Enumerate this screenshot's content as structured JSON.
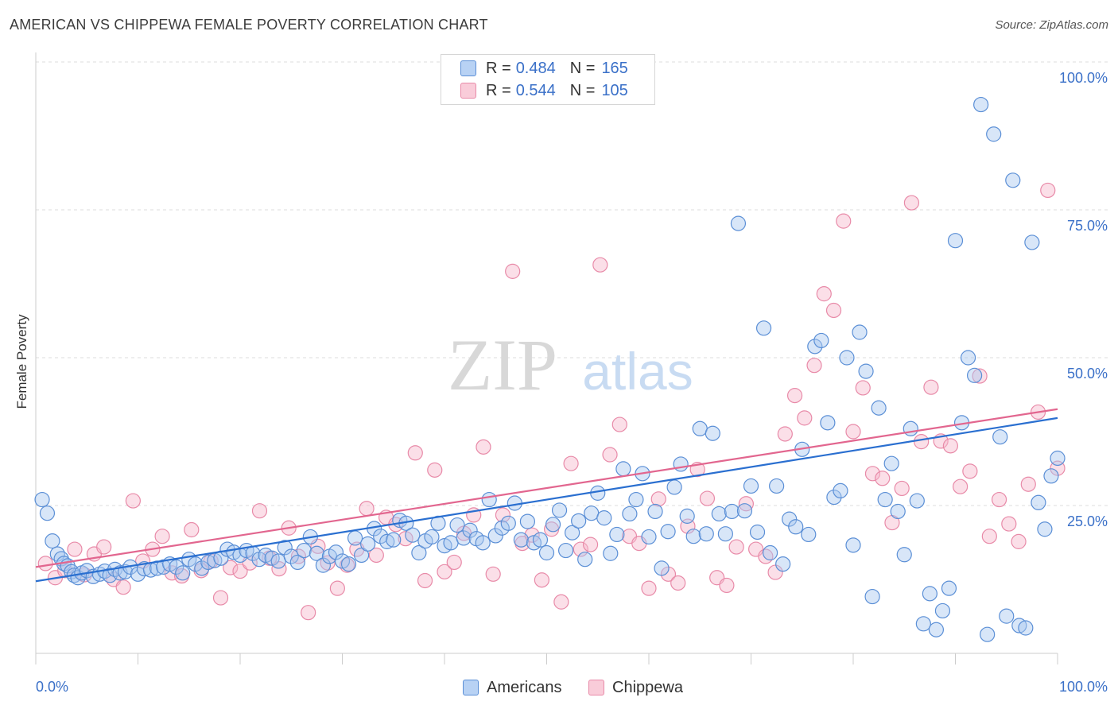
{
  "title": "AMERICAN VS CHIPPEWA FEMALE POVERTY CORRELATION CHART",
  "source": "Source: ZipAtlas.com",
  "watermark": {
    "zip": "ZIP",
    "atlas": "atlas"
  },
  "legend": {
    "americans": {
      "r_label": "R =",
      "r_value": "0.484",
      "n_label": "N =",
      "n_value": "165"
    },
    "chippewa": {
      "r_label": "R =",
      "r_value": "0.544",
      "n_label": "N =",
      "n_value": "105"
    }
  },
  "bottom_legend": {
    "americans": "Americans",
    "chippewa": "Chippewa"
  },
  "colors": {
    "americans_fill": "#a8c8f0",
    "americans_stroke": "#5b8fd6",
    "americans_line": "#2a6fd0",
    "chippewa_fill": "#f6b9cc",
    "chippewa_stroke": "#e88aa8",
    "chippewa_line": "#e2668f",
    "value_text": "#3a70c8",
    "grid": "#dddddd"
  },
  "chart_data": {
    "type": "scatter",
    "title": "AMERICAN VS CHIPPEWA FEMALE POVERTY CORRELATION CHART",
    "xlabel": "",
    "ylabel": "Female Poverty",
    "xlim": [
      0,
      100
    ],
    "ylim": [
      0,
      100
    ],
    "x_tick_labels": [
      "0.0%",
      "100.0%"
    ],
    "y_ticks": [
      25,
      50,
      75,
      100
    ],
    "y_tick_labels": [
      "25.0%",
      "50.0%",
      "75.0%",
      "100.0%"
    ],
    "grid": true,
    "legend_position": "top-center",
    "series": [
      {
        "name": "Americans",
        "r": 0.484,
        "n": 165,
        "trend": {
          "x": [
            0,
            100
          ],
          "y": [
            12.2,
            39.8
          ]
        },
        "points": [
          [
            0.5,
            26.0
          ],
          [
            0.9,
            23.7
          ],
          [
            1.3,
            19.0
          ],
          [
            1.7,
            16.8
          ],
          [
            2.0,
            16.0
          ],
          [
            2.2,
            15.2
          ],
          [
            2.5,
            14.8
          ],
          [
            2.8,
            13.8
          ],
          [
            3.0,
            13.2
          ],
          [
            3.3,
            12.8
          ],
          [
            3.6,
            13.6
          ],
          [
            4.0,
            14.0
          ],
          [
            4.5,
            13.0
          ],
          [
            5.0,
            13.4
          ],
          [
            5.4,
            13.9
          ],
          [
            5.8,
            13.2
          ],
          [
            6.2,
            14.2
          ],
          [
            6.6,
            13.6
          ],
          [
            7.0,
            13.8
          ],
          [
            7.4,
            14.6
          ],
          [
            8.0,
            13.4
          ],
          [
            8.5,
            14.3
          ],
          [
            9.0,
            14.1
          ],
          [
            9.5,
            14.4
          ],
          [
            10.0,
            14.6
          ],
          [
            10.5,
            15.1
          ],
          [
            11.0,
            14.6
          ],
          [
            11.5,
            13.6
          ],
          [
            12.0,
            15.9
          ],
          [
            12.5,
            15.1
          ],
          [
            13.0,
            14.4
          ],
          [
            13.5,
            15.4
          ],
          [
            14.0,
            15.7
          ],
          [
            14.5,
            16.1
          ],
          [
            15.0,
            17.6
          ],
          [
            15.5,
            17.1
          ],
          [
            16.0,
            16.6
          ],
          [
            16.5,
            17.4
          ],
          [
            17.0,
            16.9
          ],
          [
            17.5,
            15.9
          ],
          [
            18.0,
            16.6
          ],
          [
            18.5,
            16.1
          ],
          [
            19.0,
            15.6
          ],
          [
            19.5,
            17.9
          ],
          [
            20.0,
            16.4
          ],
          [
            20.5,
            15.4
          ],
          [
            21.0,
            17.4
          ],
          [
            21.5,
            19.7
          ],
          [
            22.0,
            16.9
          ],
          [
            22.5,
            14.9
          ],
          [
            23.0,
            16.4
          ],
          [
            23.5,
            17.1
          ],
          [
            24.0,
            15.6
          ],
          [
            24.5,
            15.1
          ],
          [
            25.0,
            19.5
          ],
          [
            25.5,
            16.6
          ],
          [
            26.0,
            18.5
          ],
          [
            26.5,
            21.1
          ],
          [
            27.0,
            19.8
          ],
          [
            27.5,
            18.9
          ],
          [
            28.0,
            19.2
          ],
          [
            28.5,
            22.5
          ],
          [
            29.0,
            22.0
          ],
          [
            29.5,
            20.0
          ],
          [
            30.0,
            17.0
          ],
          [
            30.5,
            19.0
          ],
          [
            31.0,
            19.7
          ],
          [
            31.5,
            22.0
          ],
          [
            32.0,
            18.2
          ],
          [
            32.5,
            18.7
          ],
          [
            33.0,
            21.7
          ],
          [
            33.5,
            19.5
          ],
          [
            34.0,
            20.8
          ],
          [
            34.5,
            19.4
          ],
          [
            35.0,
            18.7
          ],
          [
            35.5,
            26.0
          ],
          [
            36.0,
            19.9
          ],
          [
            36.5,
            21.2
          ],
          [
            37.0,
            22.0
          ],
          [
            37.5,
            25.4
          ],
          [
            38.0,
            19.2
          ],
          [
            38.5,
            22.3
          ],
          [
            39.0,
            18.7
          ],
          [
            39.5,
            19.2
          ],
          [
            40.0,
            17.0
          ],
          [
            40.5,
            21.8
          ],
          [
            41.0,
            24.2
          ],
          [
            41.5,
            17.4
          ],
          [
            42.0,
            20.4
          ],
          [
            42.5,
            22.4
          ],
          [
            43.0,
            15.9
          ],
          [
            43.5,
            23.7
          ],
          [
            44.0,
            27.1
          ],
          [
            44.5,
            22.9
          ],
          [
            45.0,
            16.9
          ],
          [
            45.5,
            20.1
          ],
          [
            46.0,
            31.2
          ],
          [
            46.5,
            23.6
          ],
          [
            47.0,
            26.0
          ],
          [
            47.5,
            30.4
          ],
          [
            48.0,
            19.7
          ],
          [
            48.5,
            24.0
          ],
          [
            49.0,
            14.4
          ],
          [
            49.5,
            20.6
          ],
          [
            50.0,
            28.1
          ],
          [
            50.5,
            32.0
          ],
          [
            51.0,
            23.2
          ],
          [
            51.5,
            19.8
          ],
          [
            52.0,
            38.0
          ],
          [
            52.5,
            20.2
          ],
          [
            53.0,
            37.2
          ],
          [
            53.5,
            23.6
          ],
          [
            54.0,
            20.2
          ],
          [
            54.5,
            24.0
          ],
          [
            55.0,
            72.7
          ],
          [
            55.5,
            24.1
          ],
          [
            56.0,
            28.3
          ],
          [
            56.5,
            20.5
          ],
          [
            57.0,
            55.0
          ],
          [
            57.5,
            17.0
          ],
          [
            58.0,
            28.3
          ],
          [
            58.5,
            15.1
          ],
          [
            59.0,
            22.7
          ],
          [
            59.5,
            21.4
          ],
          [
            60.0,
            34.5
          ],
          [
            60.5,
            20.1
          ],
          [
            61.0,
            51.9
          ],
          [
            61.5,
            52.9
          ],
          [
            62.0,
            39.0
          ],
          [
            62.5,
            26.4
          ],
          [
            63.0,
            27.5
          ],
          [
            63.5,
            50.0
          ],
          [
            64.0,
            18.3
          ],
          [
            64.5,
            54.3
          ],
          [
            65.0,
            47.7
          ],
          [
            65.5,
            9.6
          ],
          [
            66.0,
            41.5
          ],
          [
            66.5,
            26.0
          ],
          [
            67.0,
            32.1
          ],
          [
            67.5,
            24.0
          ],
          [
            68.0,
            16.7
          ],
          [
            68.5,
            38.0
          ],
          [
            69.0,
            25.8
          ],
          [
            69.5,
            5.0
          ],
          [
            70.0,
            10.1
          ],
          [
            70.5,
            4.0
          ],
          [
            71.0,
            7.2
          ],
          [
            71.5,
            11.0
          ],
          [
            72.0,
            69.8
          ],
          [
            72.5,
            39.0
          ],
          [
            73.0,
            50.0
          ],
          [
            73.5,
            47.0
          ],
          [
            74.0,
            92.8
          ],
          [
            74.5,
            3.2
          ],
          [
            75.0,
            87.8
          ],
          [
            75.5,
            36.6
          ],
          [
            76.0,
            6.3
          ],
          [
            76.5,
            80.0
          ],
          [
            77.0,
            4.7
          ],
          [
            77.5,
            4.3
          ],
          [
            78.0,
            69.5
          ],
          [
            78.5,
            25.5
          ],
          [
            79.0,
            21.0
          ],
          [
            79.5,
            30.0
          ],
          [
            80.0,
            33.0
          ]
        ]
      },
      {
        "name": "Chippewa",
        "r": 0.544,
        "n": 105,
        "trend": {
          "x": [
            0,
            100
          ],
          "y": [
            14.6,
            41.3
          ]
        },
        "points": [
          [
            0.4,
            15.2
          ],
          [
            0.8,
            12.8
          ],
          [
            1.2,
            14.0
          ],
          [
            1.6,
            17.6
          ],
          [
            2.0,
            13.3
          ],
          [
            2.4,
            16.8
          ],
          [
            2.8,
            18.0
          ],
          [
            3.2,
            12.5
          ],
          [
            3.6,
            11.2
          ],
          [
            4.0,
            25.8
          ],
          [
            4.4,
            15.6
          ],
          [
            4.8,
            17.6
          ],
          [
            5.2,
            19.8
          ],
          [
            5.6,
            13.6
          ],
          [
            6.0,
            13.1
          ],
          [
            6.4,
            20.9
          ],
          [
            6.8,
            14.0
          ],
          [
            7.2,
            15.6
          ],
          [
            7.6,
            9.4
          ],
          [
            8.0,
            14.5
          ],
          [
            8.4,
            13.9
          ],
          [
            8.8,
            15.3
          ],
          [
            9.2,
            24.1
          ],
          [
            9.6,
            16.1
          ],
          [
            10.0,
            14.3
          ],
          [
            10.4,
            21.2
          ],
          [
            10.8,
            16.4
          ],
          [
            11.2,
            6.9
          ],
          [
            11.6,
            18.1
          ],
          [
            12.0,
            15.3
          ],
          [
            12.4,
            11.0
          ],
          [
            12.8,
            14.9
          ],
          [
            13.2,
            17.6
          ],
          [
            13.6,
            24.5
          ],
          [
            14.0,
            16.6
          ],
          [
            14.4,
            23.0
          ],
          [
            14.8,
            21.8
          ],
          [
            15.2,
            19.4
          ],
          [
            15.6,
            33.9
          ],
          [
            16.0,
            12.3
          ],
          [
            16.4,
            31.0
          ],
          [
            16.8,
            13.8
          ],
          [
            17.2,
            15.4
          ],
          [
            17.6,
            20.3
          ],
          [
            18.0,
            23.4
          ],
          [
            18.4,
            34.9
          ],
          [
            18.8,
            13.4
          ],
          [
            19.2,
            23.4
          ],
          [
            19.6,
            64.6
          ],
          [
            20.0,
            18.6
          ],
          [
            20.4,
            20.0
          ],
          [
            20.8,
            12.4
          ],
          [
            21.2,
            21.0
          ],
          [
            21.6,
            8.7
          ],
          [
            22.0,
            32.1
          ],
          [
            22.4,
            17.6
          ],
          [
            22.8,
            18.4
          ],
          [
            23.2,
            65.7
          ],
          [
            23.6,
            33.6
          ],
          [
            24.0,
            38.7
          ],
          [
            24.4,
            19.8
          ],
          [
            24.8,
            18.6
          ],
          [
            25.2,
            11.0
          ],
          [
            25.6,
            26.1
          ],
          [
            26.0,
            13.4
          ],
          [
            26.4,
            11.9
          ],
          [
            26.8,
            21.5
          ],
          [
            27.2,
            31.1
          ],
          [
            27.6,
            26.2
          ],
          [
            28.0,
            12.8
          ],
          [
            28.4,
            11.5
          ],
          [
            28.8,
            18.0
          ],
          [
            29.2,
            25.3
          ],
          [
            29.6,
            17.6
          ],
          [
            30.0,
            16.4
          ],
          [
            30.4,
            13.7
          ],
          [
            30.8,
            37.1
          ],
          [
            31.2,
            43.6
          ],
          [
            31.6,
            39.8
          ],
          [
            32.0,
            48.7
          ],
          [
            32.4,
            60.8
          ],
          [
            32.8,
            58.0
          ],
          [
            33.2,
            73.1
          ],
          [
            33.6,
            37.5
          ],
          [
            34.0,
            44.9
          ],
          [
            34.4,
            30.4
          ],
          [
            34.8,
            29.6
          ],
          [
            35.2,
            22.1
          ],
          [
            35.6,
            27.9
          ],
          [
            36.0,
            76.2
          ],
          [
            36.4,
            35.8
          ],
          [
            36.8,
            45.0
          ],
          [
            37.2,
            35.9
          ],
          [
            37.6,
            35.1
          ],
          [
            38.0,
            28.2
          ],
          [
            38.4,
            30.8
          ],
          [
            38.8,
            46.9
          ],
          [
            39.2,
            19.8
          ],
          [
            39.6,
            26.0
          ],
          [
            40.0,
            21.9
          ],
          [
            40.4,
            18.9
          ],
          [
            40.8,
            28.6
          ],
          [
            41.2,
            40.8
          ],
          [
            41.6,
            78.3
          ],
          [
            42.0,
            31.3
          ]
        ]
      }
    ]
  }
}
